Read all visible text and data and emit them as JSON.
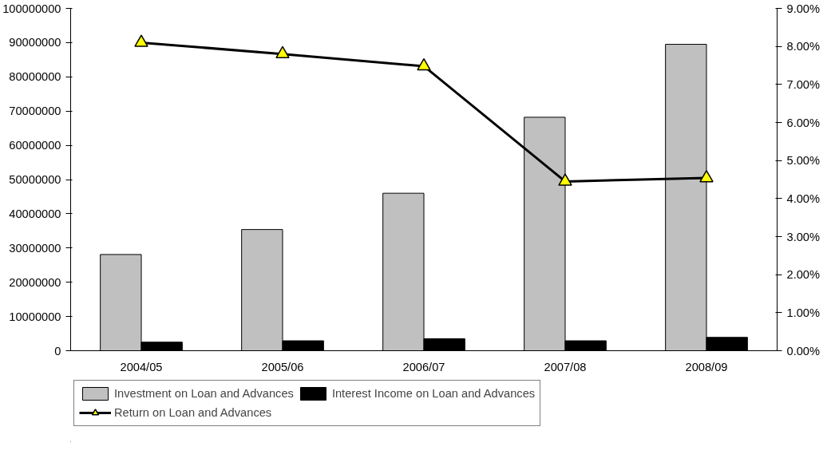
{
  "chart_data": {
    "type": "bar",
    "categories": [
      "2004/05",
      "2005/06",
      "2006/07",
      "2007/08",
      "2008/09"
    ],
    "series": [
      {
        "name": "Investment on Loan and Advances",
        "color": "#c0c0c0",
        "values": [
          28100000,
          35400000,
          46000000,
          68200000,
          89500000
        ]
      },
      {
        "name": "Interest Income on Loan and Advances",
        "color": "#000000",
        "values": [
          2500000,
          2900000,
          3500000,
          2900000,
          3900000
        ]
      },
      {
        "name": "Return on Loan and Advances",
        "type": "line",
        "axis": "y2",
        "color": "#000000",
        "marker": "triangle",
        "line_style": "solid",
        "values": [
          8.1,
          7.8,
          7.48,
          4.45,
          4.54
        ]
      }
    ],
    "ylim": [
      0,
      100000000
    ],
    "yticks": [
      0,
      10000000,
      20000000,
      30000000,
      40000000,
      50000000,
      60000000,
      70000000,
      80000000,
      90000000,
      100000000
    ],
    "y2lim": [
      0,
      9
    ],
    "y2ticks": [
      {
        "value": 0,
        "label": "0.00%"
      },
      {
        "value": 1,
        "label": "1.00%"
      },
      {
        "value": 2,
        "label": "2.00%"
      },
      {
        "value": 3,
        "label": "3.00%"
      },
      {
        "value": 4,
        "label": "4.00%"
      },
      {
        "value": 5,
        "label": "5.00%"
      },
      {
        "value": 6,
        "label": "6.00%"
      },
      {
        "value": 7,
        "label": "7.00%"
      },
      {
        "value": 8,
        "label": "8.00%"
      },
      {
        "value": 9,
        "label": "9.00%"
      }
    ],
    "legend": "bottom",
    "grid": false
  }
}
